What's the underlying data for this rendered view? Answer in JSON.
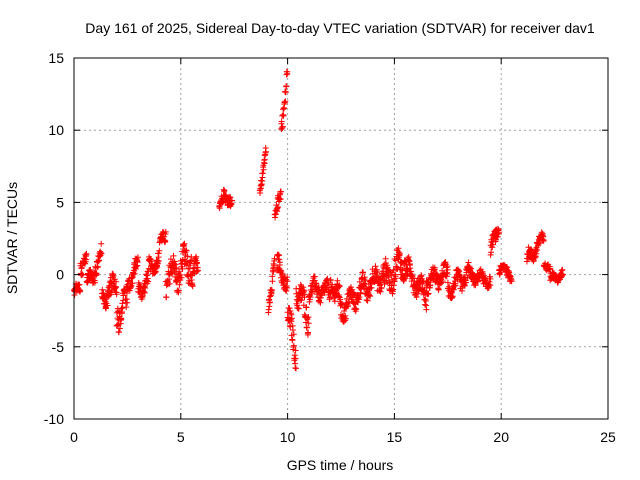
{
  "chart_data": {
    "type": "scatter",
    "title": "Day 161 of 2025, Sidereal Day-to-day VTEC variation (SDTVAR) for receiver dav1",
    "xlabel": "GPS time / hours",
    "ylabel": "SDTVAR / TECUs",
    "xlim": [
      0,
      25
    ],
    "ylim": [
      -10,
      15
    ],
    "xticks": [
      0,
      5,
      10,
      15,
      20,
      25
    ],
    "yticks": [
      -10,
      -5,
      0,
      5,
      10,
      15
    ],
    "xtick_labels": [
      "0",
      "5",
      "10",
      "15",
      "20",
      "25"
    ],
    "ytick_labels": [
      "-10",
      "-5",
      "0",
      "5",
      "10",
      "15"
    ],
    "grid": true,
    "marker": "+",
    "color": "#ff0000",
    "segments": [
      {
        "x0": 0.0,
        "x1": 0.3,
        "y0": -1.2,
        "y1": -1.0,
        "spread": 0.6
      },
      {
        "x0": 0.3,
        "x1": 0.6,
        "y0": 0.5,
        "y1": 1.5,
        "spread": 1.0
      },
      {
        "x0": 0.6,
        "x1": 1.0,
        "y0": -0.5,
        "y1": 0.2,
        "spread": 0.8
      },
      {
        "x0": 1.0,
        "x1": 1.3,
        "y0": 0.5,
        "y1": 1.5,
        "spread": 0.9
      },
      {
        "x0": 1.3,
        "x1": 2.0,
        "y0": -1.5,
        "y1": -0.8,
        "spread": 1.2
      },
      {
        "x0": 2.0,
        "x1": 2.5,
        "y0": -2.5,
        "y1": -2.0,
        "spread": 1.8
      },
      {
        "x0": 2.5,
        "x1": 3.0,
        "y0": -0.5,
        "y1": 0.5,
        "spread": 1.0
      },
      {
        "x0": 3.0,
        "x1": 3.5,
        "y0": -1.0,
        "y1": -0.5,
        "spread": 1.0
      },
      {
        "x0": 3.5,
        "x1": 4.0,
        "y0": 0.5,
        "y1": 1.0,
        "spread": 0.8
      },
      {
        "x0": 4.0,
        "x1": 4.3,
        "y0": 2.0,
        "y1": 3.0,
        "spread": 0.8
      },
      {
        "x0": 4.3,
        "x1": 4.8,
        "y0": -0.5,
        "y1": 0.5,
        "spread": 1.5
      },
      {
        "x0": 4.8,
        "x1": 5.5,
        "y0": 0.0,
        "y1": 1.0,
        "spread": 1.8
      },
      {
        "x0": 5.5,
        "x1": 5.8,
        "y0": -0.5,
        "y1": 0.5,
        "spread": 1.2
      },
      {
        "x0": 6.8,
        "x1": 7.0,
        "y0": 4.5,
        "y1": 5.5,
        "spread": 0.6
      },
      {
        "x0": 7.0,
        "x1": 7.4,
        "y0": 6.0,
        "y1": 4.5,
        "spread": 0.7
      },
      {
        "x0": 8.7,
        "x1": 9.0,
        "y0": 6.0,
        "y1": 8.5,
        "spread": 0.6
      },
      {
        "x0": 9.1,
        "x1": 9.4,
        "y0": -2.5,
        "y1": 1.5,
        "spread": 1.0
      },
      {
        "x0": 9.4,
        "x1": 9.7,
        "y0": 4.0,
        "y1": 5.5,
        "spread": 0.8
      },
      {
        "x0": 9.7,
        "x1": 10.0,
        "y0": 10.0,
        "y1": 14.5,
        "spread": 1.2
      },
      {
        "x0": 9.5,
        "x1": 10.0,
        "y0": 0.5,
        "y1": -0.5,
        "spread": 1.2
      },
      {
        "x0": 10.0,
        "x1": 10.4,
        "y0": -3.0,
        "y1": -5.5,
        "spread": 1.5
      },
      {
        "x0": 10.4,
        "x1": 11.0,
        "y0": -1.0,
        "y1": -3.0,
        "spread": 1.5
      },
      {
        "x0": 11.0,
        "x1": 12.0,
        "y0": -1.0,
        "y1": -1.2,
        "spread": 1.0
      },
      {
        "x0": 12.0,
        "x1": 12.5,
        "y0": -0.5,
        "y1": -2.0,
        "spread": 1.2
      },
      {
        "x0": 12.5,
        "x1": 13.5,
        "y0": -2.5,
        "y1": -1.0,
        "spread": 1.2
      },
      {
        "x0": 13.5,
        "x1": 14.5,
        "y0": -1.0,
        "y1": 0.0,
        "spread": 1.3
      },
      {
        "x0": 14.5,
        "x1": 15.5,
        "y0": -0.5,
        "y1": 1.0,
        "spread": 1.6
      },
      {
        "x0": 15.5,
        "x1": 16.5,
        "y0": 0.5,
        "y1": -1.5,
        "spread": 1.2
      },
      {
        "x0": 16.5,
        "x1": 17.5,
        "y0": -0.5,
        "y1": 0.0,
        "spread": 1.0
      },
      {
        "x0": 17.5,
        "x1": 18.5,
        "y0": -1.0,
        "y1": 0.0,
        "spread": 1.0
      },
      {
        "x0": 18.5,
        "x1": 19.5,
        "y0": 0.0,
        "y1": -0.5,
        "spread": 0.7
      },
      {
        "x0": 19.5,
        "x1": 19.9,
        "y0": 1.5,
        "y1": 3.5,
        "spread": 0.8
      },
      {
        "x0": 19.9,
        "x1": 20.5,
        "y0": 0.5,
        "y1": 0.0,
        "spread": 0.6
      },
      {
        "x0": 21.2,
        "x1": 22.0,
        "y0": 1.0,
        "y1": 2.5,
        "spread": 0.8
      },
      {
        "x0": 22.0,
        "x1": 22.3,
        "y0": 0.8,
        "y1": 0.5,
        "spread": 0.4
      },
      {
        "x0": 22.3,
        "x1": 22.9,
        "y0": -0.3,
        "y1": 0.0,
        "spread": 0.5
      }
    ]
  }
}
